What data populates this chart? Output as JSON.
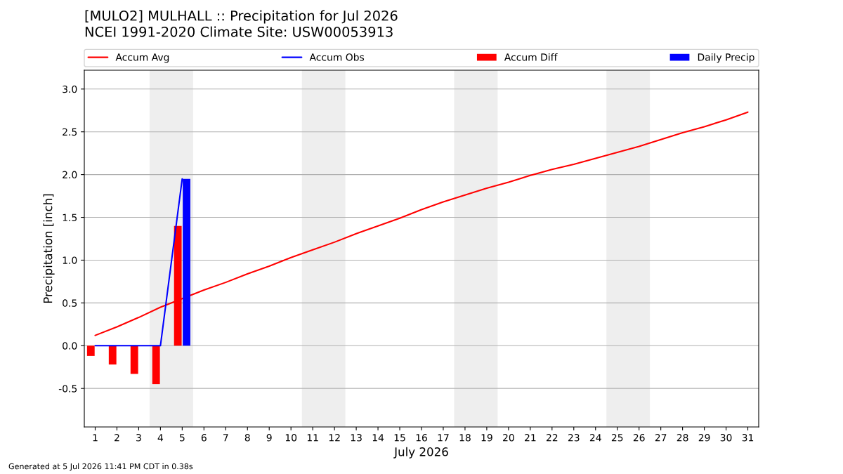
{
  "chart_data": {
    "type": "line",
    "title": "[MULO2] MULHALL :: Precipitation for Jul 2026",
    "subtitle": "NCEI 1991-2020 Climate Site: USW00053913",
    "xlabel": "July 2026",
    "ylabel": "Precipitation [inch]",
    "annotations": [
      "Generated at 5 Jul 2026 11:41 PM CDT in 0.38s"
    ],
    "x": [
      1,
      2,
      3,
      4,
      5,
      6,
      7,
      8,
      9,
      10,
      11,
      12,
      13,
      14,
      15,
      16,
      17,
      18,
      19,
      20,
      21,
      22,
      23,
      24,
      25,
      26,
      27,
      28,
      29,
      30,
      31
    ],
    "series": [
      {
        "name": "Accum Avg",
        "color": "#ff0000",
        "values": [
          0.12,
          0.22,
          0.33,
          0.45,
          0.55,
          0.65,
          0.74,
          0.84,
          0.93,
          1.03,
          1.12,
          1.21,
          1.31,
          1.4,
          1.49,
          1.59,
          1.68,
          1.76,
          1.84,
          1.91,
          1.99,
          2.06,
          2.12,
          2.19,
          2.26,
          2.33,
          2.41,
          2.49,
          2.56,
          2.64,
          2.73
        ]
      },
      {
        "name": "Accum Diff",
        "type": "bar",
        "color": "#ff0000",
        "x": [
          1,
          2,
          3,
          4,
          5
        ],
        "values": [
          -0.12,
          -0.22,
          -0.33,
          -0.45,
          1.4
        ]
      },
      {
        "name": "Daily Precip",
        "type": "bar",
        "color": "#0000ff",
        "x": [
          5
        ],
        "values": [
          1.95
        ]
      },
      {
        "name": "Accum Obs",
        "color": "#0000ff",
        "x": [
          1,
          2,
          3,
          4,
          5
        ],
        "values": [
          0,
          0,
          0,
          0,
          1.95
        ]
      }
    ],
    "bands": [
      {
        "axis": "x",
        "from": 3.5,
        "to": 5.5,
        "color": "#eeeeee"
      },
      {
        "axis": "x",
        "from": 10.5,
        "to": 12.5,
        "color": "#eeeeee"
      },
      {
        "axis": "x",
        "from": 17.5,
        "to": 19.5,
        "color": "#eeeeee"
      },
      {
        "axis": "x",
        "from": 24.5,
        "to": 26.5,
        "color": "#eeeeee"
      }
    ],
    "xlim": [
      0.5,
      31.5
    ],
    "xticks": [
      1,
      2,
      3,
      4,
      5,
      6,
      7,
      8,
      9,
      10,
      11,
      12,
      13,
      14,
      15,
      16,
      17,
      18,
      19,
      20,
      21,
      22,
      23,
      24,
      25,
      26,
      27,
      28,
      29,
      30,
      31
    ],
    "ylim": [
      -0.95,
      3.22
    ],
    "yticks": [
      -0.5,
      {
        "value": 0,
        "label": "0.0"
      },
      0.5,
      {
        "value": 1,
        "label": "1.0"
      },
      1.5,
      {
        "value": 2,
        "label": "2.0"
      },
      2.5,
      {
        "value": 3,
        "label": "3.0"
      }
    ],
    "grid": "y",
    "legend": "top",
    "marker": "none",
    "line_style": "solid"
  }
}
